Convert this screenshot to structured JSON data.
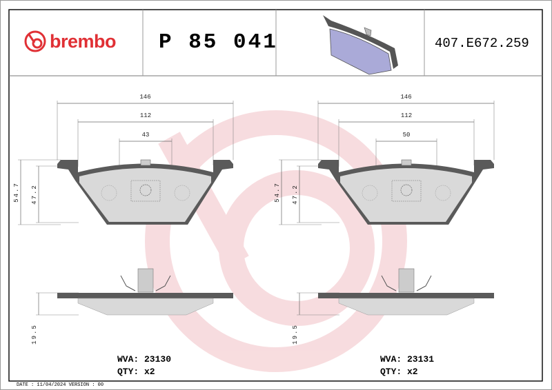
{
  "header": {
    "brand": "brembo",
    "part_number": "P 85 041",
    "reference": "407.E672.259"
  },
  "left_pad": {
    "dims": {
      "width_total": "146",
      "width_inner": "112",
      "spacing": "43",
      "height_total": "54.7",
      "height_pad": "47.2",
      "thickness": "19.5"
    },
    "wva_label": "WVA: 23130",
    "qty_label": "QTY: x2"
  },
  "right_pad": {
    "dims": {
      "width_total": "146",
      "width_inner": "112",
      "spacing": "50",
      "height_total": "54.7",
      "height_pad": "47.2",
      "thickness": "19.5"
    },
    "wva_label": "WVA: 23131",
    "qty_label": "QTY: x2"
  },
  "footer": {
    "date_version": "DATE : 11/04/2024 VERSION : 00"
  },
  "colors": {
    "brand_red": "#e03035",
    "watermark": "#f6d5d8",
    "pad_fill": "#d8d8d8",
    "plate": "#555555",
    "pad_3d": "#aaaad8"
  }
}
